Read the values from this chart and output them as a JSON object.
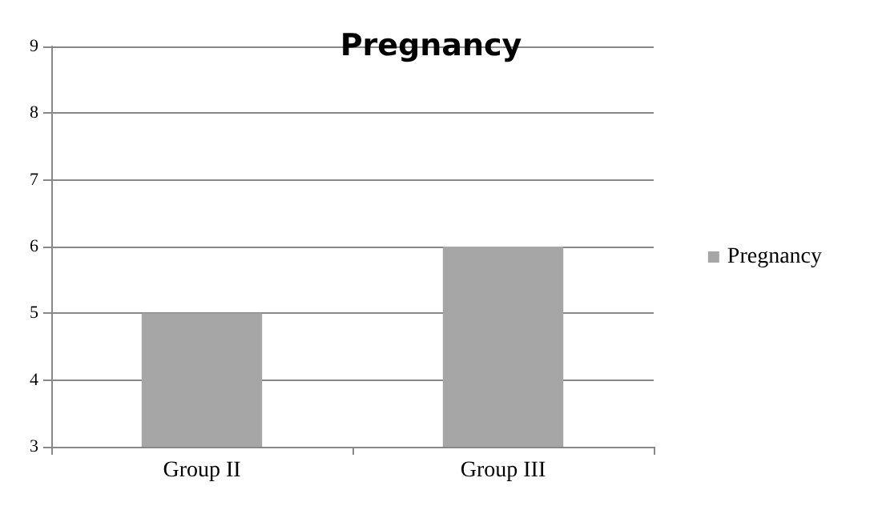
{
  "chart_data": {
    "type": "bar",
    "title": "Pregnancy",
    "categories": [
      "Group II",
      "Group III"
    ],
    "series": [
      {
        "name": "Pregnancy",
        "color": "#a6a6a6",
        "values": [
          5,
          6
        ]
      }
    ],
    "ylim": [
      3,
      9
    ],
    "yticks": [
      3,
      4,
      5,
      6,
      7,
      8,
      9
    ],
    "grid": "y",
    "legend": "right"
  }
}
